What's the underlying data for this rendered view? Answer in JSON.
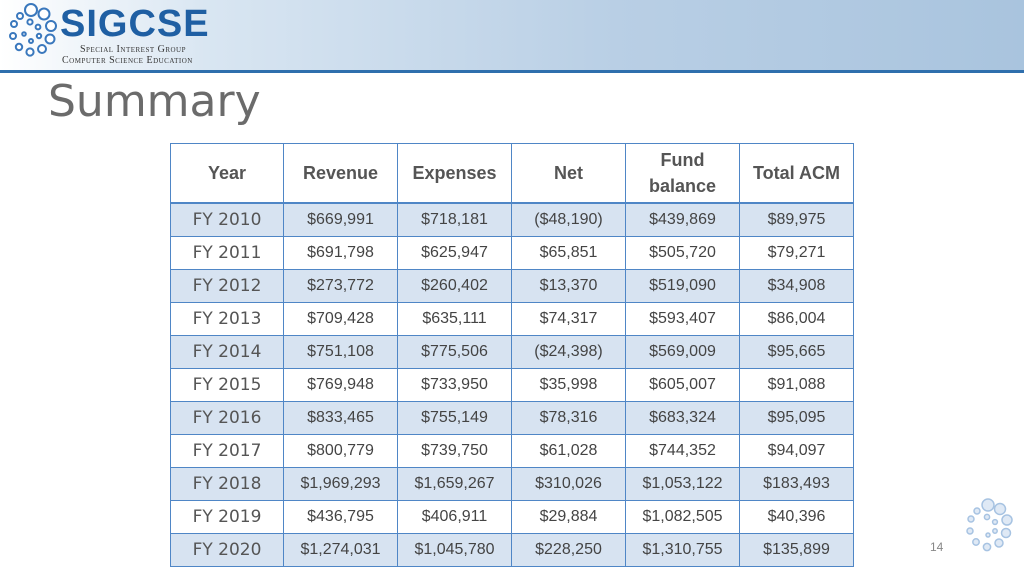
{
  "header": {
    "logo_text": "SIGCSE",
    "logo_line1": "Special Interest Group",
    "logo_line2": "Computer Science Education"
  },
  "title": "Summary",
  "table": {
    "headers": [
      "Year",
      "Revenue",
      "Expenses",
      "Net",
      "Fund balance",
      "Total ACM"
    ],
    "rows": [
      [
        "FY 2010",
        "$669,991",
        "$718,181",
        "($48,190)",
        "$439,869",
        "$89,975"
      ],
      [
        "FY 2011",
        "$691,798",
        "$625,947",
        "$65,851",
        "$505,720",
        "$79,271"
      ],
      [
        "FY 2012",
        "$273,772",
        "$260,402",
        "$13,370",
        "$519,090",
        "$34,908"
      ],
      [
        "FY 2013",
        "$709,428",
        "$635,111",
        "$74,317",
        "$593,407",
        "$86,004"
      ],
      [
        "FY 2014",
        "$751,108",
        "$775,506",
        "($24,398)",
        "$569,009",
        "$95,665"
      ],
      [
        "FY 2015",
        "$769,948",
        "$733,950",
        "$35,998",
        "$605,007",
        "$91,088"
      ],
      [
        "FY 2016",
        "$833,465",
        "$755,149",
        "$78,316",
        "$683,324",
        "$95,095"
      ],
      [
        "FY 2017",
        "$800,779",
        "$739,750",
        "$61,028",
        "$744,352",
        "$94,097"
      ],
      [
        "FY 2018",
        "$1,969,293",
        "$1,659,267",
        "$310,026",
        "$1,053,122",
        "$183,493"
      ],
      [
        "FY 2019",
        "$436,795",
        "$406,911",
        "$29,884",
        "$1,082,505",
        "$40,396"
      ],
      [
        "FY 2020",
        "$1,274,031",
        "$1,045,780",
        "$228,250",
        "$1,310,755",
        "$135,899"
      ]
    ]
  },
  "page_number": "14",
  "colors": {
    "brand_blue": "#1f5fa3",
    "table_border": "#4f86c6",
    "stripe": "#d7e3f1"
  }
}
